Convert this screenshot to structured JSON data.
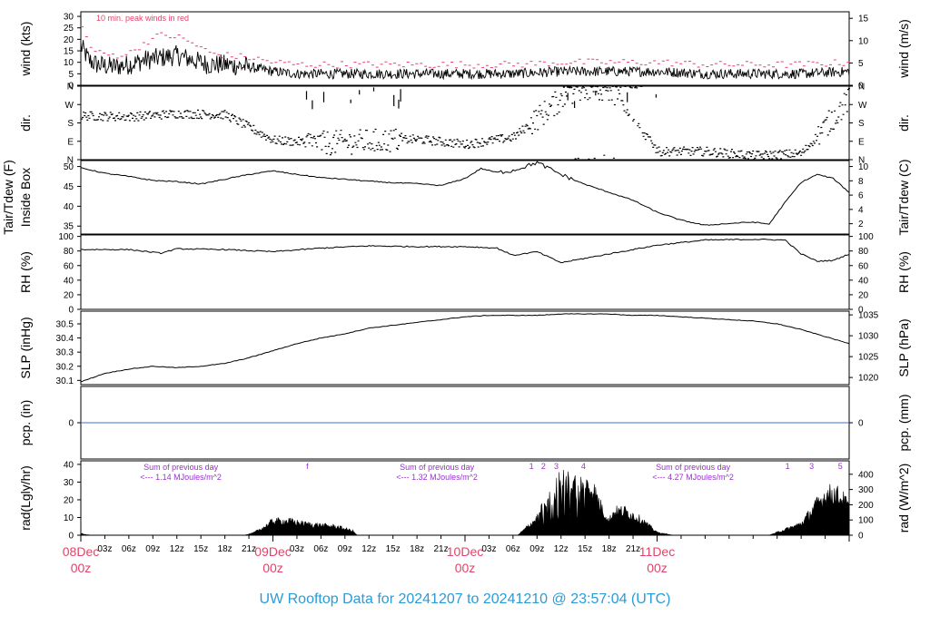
{
  "title": "UW Rooftop Data for 20241207  to  20241210 @ 23:57:04  (UTC)",
  "colors": {
    "peak": "#e0446a",
    "note": "#9b30d0",
    "precip": "#3b6fd6",
    "title": "#2a9bd6",
    "day": "#e0446a"
  },
  "time_axis": {
    "hour_ticks": [
      "03z",
      "06z",
      "09z",
      "12z",
      "15z",
      "18z",
      "21z",
      "03z",
      "06z",
      "09z",
      "12z",
      "15z",
      "18z",
      "21z",
      "03z",
      "06z",
      "09z",
      "12z",
      "15z",
      "18z",
      "21z"
    ],
    "day_labels": [
      {
        "date": "08Dec",
        "hour": "00z"
      },
      {
        "date": "09Dec",
        "hour": "00z"
      },
      {
        "date": "10Dec",
        "hour": "00z"
      },
      {
        "date": "11Dec",
        "hour": "00z"
      }
    ]
  },
  "chart_data": [
    {
      "id": "wind",
      "type": "line",
      "left_label": "wind (kts)",
      "right_label": "wind (m/s)",
      "annotation": "10 min. peak winds in red",
      "left_ticks": [
        "0",
        "5",
        "10",
        "15",
        "20",
        "25",
        "30"
      ],
      "right_ticks": [
        "0",
        "5",
        "10",
        "15"
      ],
      "ylim": [
        0,
        32
      ],
      "series": [
        {
          "role": "mean",
          "x_hours": [
            0,
            1,
            2,
            4,
            6,
            8,
            10,
            12,
            14,
            16,
            18,
            21,
            24,
            27,
            30,
            36,
            42,
            48,
            54,
            60,
            66,
            72,
            78,
            84,
            90,
            96
          ],
          "values": [
            17,
            11,
            9,
            8,
            9,
            11,
            12,
            13,
            11,
            9,
            9,
            8,
            6,
            5,
            5,
            5,
            5,
            5,
            5,
            6,
            6,
            6,
            5,
            5,
            5,
            6
          ]
        },
        {
          "role": "peak",
          "x_hours": [
            0,
            1,
            2,
            4,
            6,
            8,
            10,
            12,
            14,
            16,
            18,
            21,
            24,
            27,
            30,
            36,
            42,
            48,
            54,
            60,
            66,
            72,
            78,
            84,
            90,
            96
          ],
          "values": [
            25,
            17,
            14,
            13,
            14,
            19,
            22,
            21,
            18,
            14,
            13,
            12,
            10,
            9,
            9,
            9,
            9,
            9,
            9,
            10,
            10,
            10,
            9,
            9,
            9,
            10
          ]
        }
      ]
    },
    {
      "id": "dir",
      "type": "scatter",
      "left_label": "dir.",
      "right_label": "dir.",
      "left_ticks": [
        "N",
        "E",
        "S",
        "W",
        "N"
      ],
      "right_ticks": [
        "N",
        "E",
        "S",
        "W",
        "N"
      ],
      "ylim": [
        0,
        360
      ],
      "x_hours": [
        0,
        6,
        12,
        18,
        24,
        30,
        36,
        42,
        48,
        54,
        60,
        66,
        72,
        78,
        84,
        90,
        96
      ],
      "values": [
        215,
        210,
        225,
        220,
        95,
        80,
        90,
        100,
        75,
        110,
        300,
        350,
        40,
        40,
        20,
        30,
        300
      ]
    },
    {
      "id": "temp",
      "type": "line",
      "left_label": "Tair/Tdew (F)",
      "left_label2": "Inside Box",
      "right_label": "Tair/Tdew (C)",
      "left_ticks": [
        "35",
        "40",
        "45",
        "50"
      ],
      "right_ticks": [
        "2",
        "4",
        "6",
        "8",
        "10"
      ],
      "ylim": [
        33,
        51.5
      ],
      "x_hours": [
        0,
        3,
        6,
        9,
        12,
        15,
        18,
        21,
        24,
        27,
        30,
        33,
        36,
        39,
        42,
        45,
        48,
        50,
        52,
        54,
        57,
        60,
        63,
        66,
        69,
        72,
        75,
        78,
        80,
        82,
        84,
        86,
        88,
        90,
        92,
        94,
        96
      ],
      "values": [
        49.7,
        48.3,
        47.5,
        46.5,
        46.2,
        45.6,
        46.8,
        48.0,
        48.9,
        48.0,
        47.2,
        46.8,
        46.3,
        45.9,
        45.7,
        45.2,
        47.0,
        49.5,
        48.5,
        49.0,
        51.0,
        48.0,
        45.5,
        43.5,
        41.5,
        38.5,
        36.5,
        35.2,
        35.5,
        35.8,
        36.0,
        35.5,
        41.0,
        46.0,
        48.0,
        47.0,
        43.5
      ]
    },
    {
      "id": "rh",
      "type": "line",
      "left_label": "RH (%)",
      "right_label": "RH (%)",
      "left_ticks": [
        "0",
        "20",
        "40",
        "60",
        "80",
        "100"
      ],
      "right_ticks": [
        "0",
        "20",
        "40",
        "60",
        "80",
        "100"
      ],
      "ylim": [
        0,
        102
      ],
      "x_hours": [
        0,
        6,
        10,
        12,
        18,
        24,
        30,
        36,
        42,
        48,
        52,
        54,
        57,
        60,
        66,
        72,
        78,
        84,
        88,
        90,
        92,
        94,
        96
      ],
      "values": [
        82,
        82,
        77,
        83,
        82,
        79,
        84,
        87,
        86,
        86,
        84,
        74,
        79,
        64,
        76,
        88,
        95,
        96,
        95,
        76,
        66,
        67,
        76
      ]
    },
    {
      "id": "slp",
      "type": "line",
      "left_label": "SLP (inHg)",
      "right_label": "SLP (hPa)",
      "left_ticks": [
        "30.1",
        "30.2",
        "30.3",
        "30.4",
        "30.5"
      ],
      "right_ticks": [
        "1020",
        "1025",
        "1030",
        "1035"
      ],
      "ylim": [
        30.07,
        30.59
      ],
      "x_hours": [
        0,
        3,
        6,
        9,
        12,
        15,
        18,
        21,
        24,
        27,
        30,
        33,
        36,
        39,
        42,
        45,
        48,
        51,
        54,
        57,
        60,
        63,
        66,
        69,
        72,
        75,
        78,
        81,
        84,
        87,
        90,
        93,
        96
      ],
      "values": [
        30.09,
        30.15,
        30.18,
        30.2,
        30.19,
        30.2,
        30.22,
        30.26,
        30.31,
        30.36,
        30.4,
        30.43,
        30.47,
        30.49,
        30.51,
        30.53,
        30.55,
        30.56,
        30.56,
        30.56,
        30.57,
        30.57,
        30.57,
        30.56,
        30.56,
        30.55,
        30.54,
        30.53,
        30.52,
        30.5,
        30.46,
        30.41,
        30.36
      ]
    },
    {
      "id": "pcp",
      "type": "line",
      "left_label": "pcp. (in)",
      "right_label": "pcp. (mm)",
      "left_ticks": [
        "0"
      ],
      "right_ticks": [
        "0"
      ],
      "ylim": [
        -1,
        1
      ],
      "x_hours": [
        0,
        96
      ],
      "values": [
        0,
        0
      ]
    },
    {
      "id": "rad",
      "type": "area",
      "left_label": "rad(Lgly/hr)",
      "right_label": "rad (W/m^2)",
      "left_ticks": [
        "0",
        "10",
        "20",
        "30",
        "40"
      ],
      "right_ticks": [
        "0",
        "100",
        "200",
        "300",
        "400"
      ],
      "ylim": [
        0,
        42
      ],
      "x_hours": [
        0,
        0.6,
        1.2,
        20.5,
        21.5,
        23,
        24,
        26,
        28,
        30,
        32,
        34,
        34.5,
        36,
        54,
        54.6,
        55,
        57,
        58,
        60,
        62,
        64,
        65,
        66,
        66.5,
        67,
        68,
        69,
        70,
        72,
        74,
        78,
        82,
        86,
        90,
        92,
        93,
        94,
        95,
        96
      ],
      "values": [
        1.5,
        0.5,
        0,
        0,
        1.5,
        6,
        10,
        10,
        8,
        7,
        6,
        3,
        0,
        0,
        0,
        0,
        2,
        12,
        22,
        38,
        36,
        33,
        20,
        10,
        16,
        17,
        17,
        14,
        11,
        2,
        0,
        0,
        0,
        0,
        8,
        22,
        28,
        30,
        27,
        20
      ],
      "notes": [
        {
          "x_hour": 12.5,
          "line1": "Sum of previous day",
          "line2": "<--- 1.14 MJoules/m^2"
        },
        {
          "x_hour": 44.5,
          "line1": "Sum of previous day",
          "line2": "<--- 1.32 MJoules/m^2"
        },
        {
          "x_hour": 76.5,
          "line1": "Sum of previous day",
          "line2": "<--- 4.27 MJoules/m^2"
        }
      ],
      "markers": [
        {
          "x_hour": 28.3,
          "text": "f"
        },
        {
          "x_hour": 56.3,
          "text": "1"
        },
        {
          "x_hour": 57.8,
          "text": "2"
        },
        {
          "x_hour": 59.4,
          "text": "3"
        },
        {
          "x_hour": 62.8,
          "text": "4"
        },
        {
          "x_hour": 88.3,
          "text": "1"
        },
        {
          "x_hour": 91.3,
          "text": "3"
        },
        {
          "x_hour": 94.9,
          "text": "5"
        }
      ]
    }
  ]
}
